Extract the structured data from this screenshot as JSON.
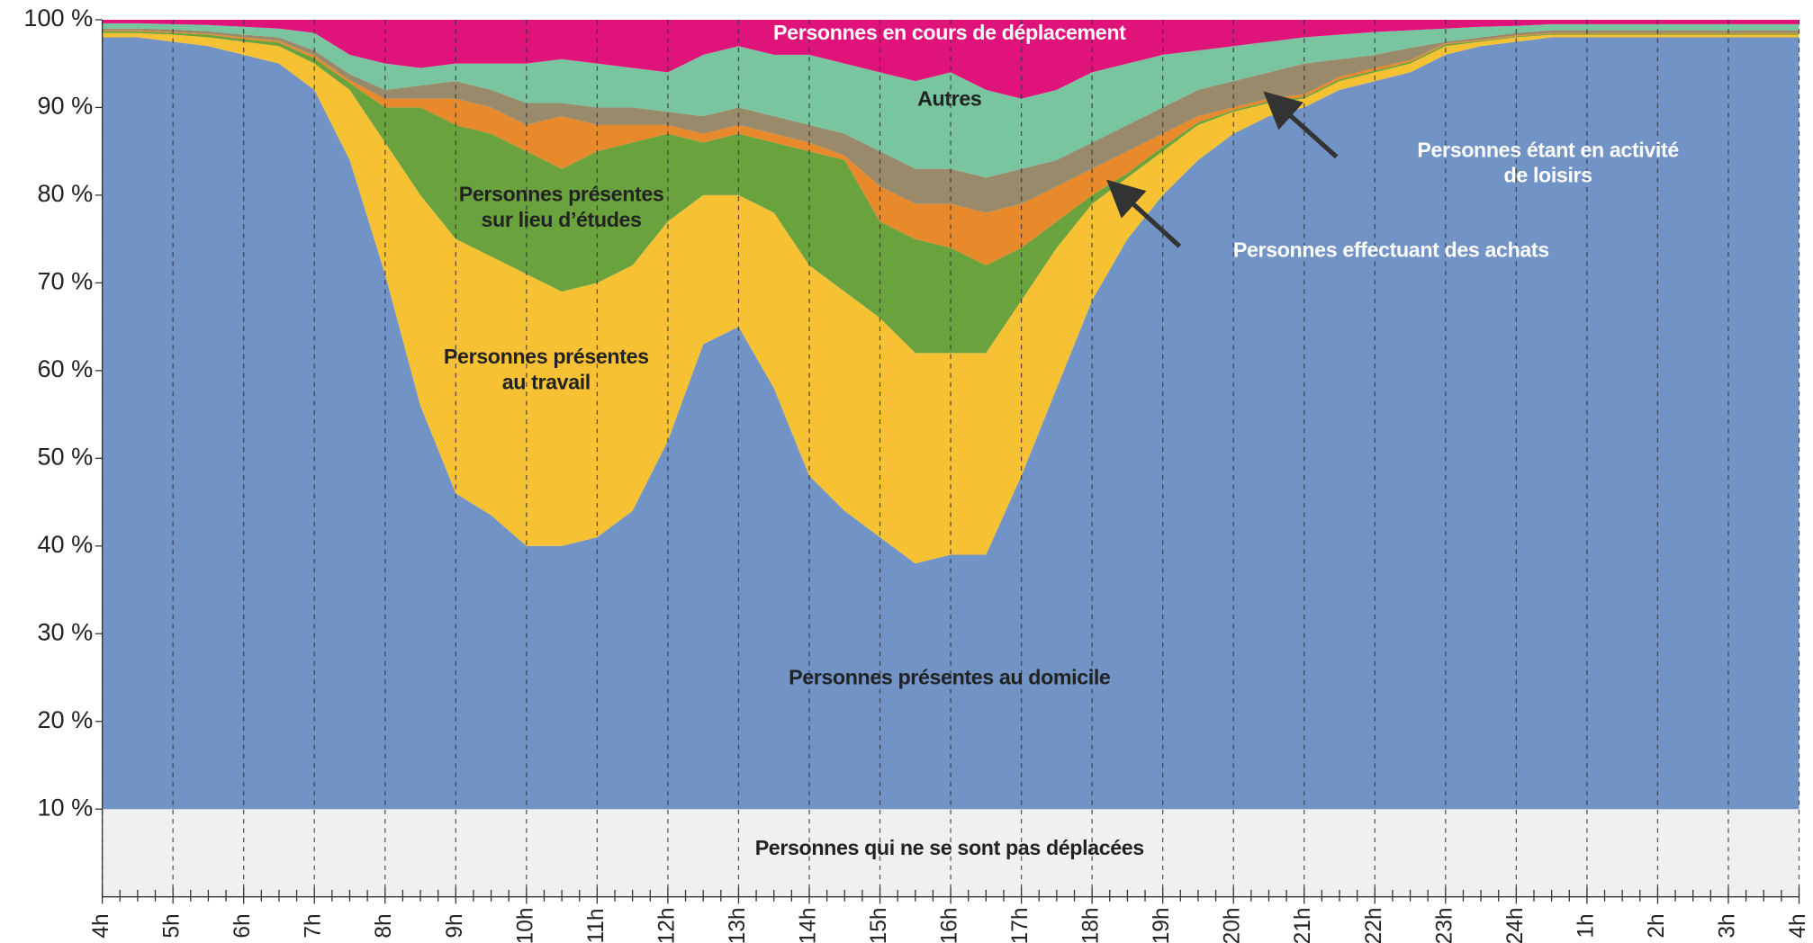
{
  "chart_data": {
    "type": "stacked-area",
    "x": [
      4,
      4.5,
      5,
      5.5,
      6,
      6.5,
      7,
      7.5,
      8,
      8.5,
      9,
      9.5,
      10,
      10.5,
      11,
      11.5,
      12,
      12.5,
      13,
      13.5,
      14,
      14.5,
      15,
      15.5,
      16,
      16.5,
      17,
      17.5,
      18,
      18.5,
      19,
      19.5,
      20,
      20.5,
      21,
      21.5,
      22,
      22.5,
      23,
      23.5,
      24,
      24.5,
      25,
      25.5,
      26,
      26.5,
      27,
      27.5,
      28
    ],
    "xlim": [
      4,
      28
    ],
    "xticks": [
      {
        "value": 4,
        "label": "4h"
      },
      {
        "value": 5,
        "label": "5h"
      },
      {
        "value": 6,
        "label": "6h"
      },
      {
        "value": 7,
        "label": "7h"
      },
      {
        "value": 8,
        "label": "8h"
      },
      {
        "value": 9,
        "label": "9h"
      },
      {
        "value": 10,
        "label": "10h"
      },
      {
        "value": 11,
        "label": "11h"
      },
      {
        "value": 12,
        "label": "12h"
      },
      {
        "value": 13,
        "label": "13h"
      },
      {
        "value": 14,
        "label": "14h"
      },
      {
        "value": 15,
        "label": "15h"
      },
      {
        "value": 16,
        "label": "16h"
      },
      {
        "value": 17,
        "label": "17h"
      },
      {
        "value": 18,
        "label": "18h"
      },
      {
        "value": 19,
        "label": "19h"
      },
      {
        "value": 20,
        "label": "20h"
      },
      {
        "value": 21,
        "label": "21h"
      },
      {
        "value": 22,
        "label": "22h"
      },
      {
        "value": 23,
        "label": "23h"
      },
      {
        "value": 24,
        "label": "24h"
      },
      {
        "value": 25,
        "label": "1h"
      },
      {
        "value": 26,
        "label": "2h"
      },
      {
        "value": 27,
        "label": "3h"
      },
      {
        "value": 28,
        "label": "4h"
      }
    ],
    "ylim": [
      0,
      100
    ],
    "yticks": [
      {
        "value": 10,
        "label": "10 %"
      },
      {
        "value": 20,
        "label": "20 %"
      },
      {
        "value": 30,
        "label": "30 %"
      },
      {
        "value": 40,
        "label": "40 %"
      },
      {
        "value": 50,
        "label": "50 %"
      },
      {
        "value": 60,
        "label": "60 %"
      },
      {
        "value": 70,
        "label": "70 %"
      },
      {
        "value": 80,
        "label": "80 %"
      },
      {
        "value": 90,
        "label": "90 %"
      },
      {
        "value": 100,
        "label": "100 %"
      }
    ],
    "series": [
      {
        "name": "Personnes qui ne se sont pas déplacées",
        "color": "#f0f0f0",
        "values": [
          10,
          10,
          10,
          10,
          10,
          10,
          10,
          10,
          10,
          10,
          10,
          10,
          10,
          10,
          10,
          10,
          10,
          10,
          10,
          10,
          10,
          10,
          10,
          10,
          10,
          10,
          10,
          10,
          10,
          10,
          10,
          10,
          10,
          10,
          10,
          10,
          10,
          10,
          10,
          10,
          10,
          10,
          10,
          10,
          10,
          10,
          10,
          10,
          10
        ]
      },
      {
        "name": "Personnes présentes au domicile",
        "color": "#7193c6",
        "values": [
          88,
          88,
          87.5,
          87,
          86,
          85,
          82,
          74,
          61,
          46,
          36,
          33.5,
          30,
          30,
          31,
          34,
          42,
          53,
          55,
          48,
          38,
          34,
          31,
          28,
          29,
          29,
          38,
          48,
          58,
          65,
          70,
          74,
          77,
          79,
          80,
          82,
          83,
          84,
          86,
          87,
          87.5,
          88,
          88,
          88,
          88,
          88,
          88,
          88,
          88
        ]
      },
      {
        "name": "Personnes présentes\nau travail",
        "color": "#f6c233",
        "values": [
          0.5,
          0.5,
          0.8,
          1,
          1.5,
          2,
          3,
          8,
          15,
          24,
          29,
          29.5,
          31,
          29,
          29,
          28,
          25,
          17,
          15,
          20,
          24,
          25,
          25,
          24,
          23,
          23,
          20,
          16,
          11,
          7,
          5,
          4,
          2.5,
          1.5,
          1,
          1,
          1,
          1,
          1,
          0.5,
          0.5,
          0.3,
          0.3,
          0.3,
          0.3,
          0.3,
          0.3,
          0.3,
          0.3
        ]
      },
      {
        "name": "Personnes présentes\nsur lieu d’études",
        "color": "#6aa23e",
        "values": [
          0.2,
          0.2,
          0.2,
          0.3,
          0.3,
          0.4,
          0.6,
          0.8,
          4,
          10,
          13,
          14,
          14,
          14,
          15,
          14,
          10,
          6,
          7,
          8,
          13,
          15,
          11,
          13,
          12,
          10,
          6,
          3,
          1,
          0.5,
          0.5,
          0.3,
          0.2,
          0.2,
          0.2,
          0.2,
          0.2,
          0.2,
          0.2,
          0.1,
          0.1,
          0.1,
          0.1,
          0.1,
          0.1,
          0.1,
          0.1,
          0.1,
          0.1
        ]
      },
      {
        "name": "Personnes effectuant des achats",
        "color": "#e8892b",
        "values": [
          0.1,
          0.1,
          0.1,
          0.1,
          0.2,
          0.2,
          0.3,
          0.3,
          1,
          1,
          3,
          3,
          3,
          6,
          3,
          2,
          1,
          1,
          1,
          1,
          1,
          0.5,
          4,
          4,
          5,
          6,
          5,
          4,
          3,
          2.5,
          1.5,
          0.7,
          0.3,
          0.3,
          0.3,
          0.3,
          0.3,
          0.2,
          0.1,
          0.1,
          0.1,
          0.1,
          0.1,
          0.1,
          0.1,
          0.1,
          0.1,
          0.1,
          0.1
        ]
      },
      {
        "name": "Personnes étant en activité de loisirs",
        "color": "#998a6b",
        "values": [
          0.2,
          0.2,
          0.3,
          0.3,
          0.3,
          0.4,
          0.6,
          0.7,
          1,
          1.5,
          2,
          2,
          2.5,
          1.5,
          2,
          2,
          1.5,
          2,
          2,
          2,
          2,
          2.5,
          4,
          4,
          4,
          4,
          4,
          3,
          3,
          3,
          3,
          3,
          3,
          3,
          3.5,
          2,
          1.5,
          1.4,
          0.2,
          0.3,
          0.3,
          0.3,
          0.3,
          0.3,
          0.3,
          0.3,
          0.3,
          0.3,
          0.3
        ]
      },
      {
        "name": "Autres",
        "color": "#79c5a0",
        "values": [
          0.6,
          0.6,
          0.6,
          0.7,
          0.9,
          1,
          2,
          2.2,
          3,
          2,
          2,
          3,
          4.5,
          5,
          5,
          4.5,
          4.5,
          7,
          7,
          7,
          8,
          8,
          9,
          10,
          11,
          10,
          8,
          8,
          8,
          7,
          6,
          4.5,
          4,
          3.5,
          3,
          2.8,
          2.6,
          2,
          1.5,
          1.2,
          0.8,
          0.7,
          0.7,
          0.7,
          0.7,
          0.7,
          0.7,
          0.7,
          0.7
        ]
      },
      {
        "name": "Personnes en cours de déplacement",
        "color": "#e0137b",
        "values": [
          0.4,
          0.4,
          0.5,
          0.6,
          0.8,
          1,
          1.5,
          4,
          5,
          5.5,
          5,
          5,
          5,
          4.5,
          5,
          5.5,
          6,
          4,
          3,
          4,
          4,
          5,
          6,
          7,
          6,
          8,
          9,
          8,
          6,
          5,
          4,
          3.5,
          3,
          2.5,
          2,
          1.7,
          1.4,
          1.2,
          1,
          0.8,
          0.7,
          0.5,
          0.5,
          0.5,
          0.5,
          0.5,
          0.5,
          0.5,
          0.5
        ]
      }
    ]
  }
}
